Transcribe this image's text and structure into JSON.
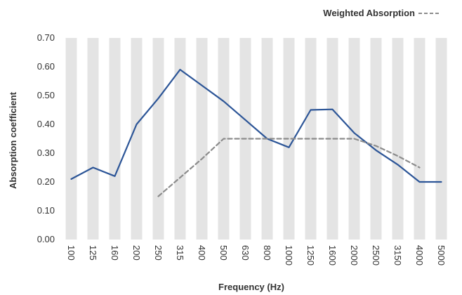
{
  "chart_data": {
    "type": "line",
    "xlabel": "Frequency (Hz)",
    "ylabel": "Absorption coefficient",
    "categories": [
      "100",
      "125",
      "160",
      "200",
      "250",
      "315",
      "400",
      "500",
      "630",
      "800",
      "1000",
      "1250",
      "1600",
      "2000",
      "2500",
      "3150",
      "4000",
      "5000"
    ],
    "ylim": [
      0,
      0.7
    ],
    "yticks": [
      "0.00",
      "0.10",
      "0.20",
      "0.30",
      "0.40",
      "0.50",
      "0.60",
      "0.70"
    ],
    "grid": "alternating vertical bands",
    "legend_position": "top-right",
    "series": [
      {
        "values": [
          0.21,
          0.25,
          0.22,
          0.4,
          0.49,
          0.59,
          0.535,
          0.48,
          0.415,
          0.35,
          0.32,
          0.45,
          0.452,
          0.37,
          0.31,
          0.26,
          0.2,
          0.2
        ],
        "color": "#2c5597",
        "style": "solid"
      },
      {
        "name": "Weighted Absorption",
        "values": [
          null,
          null,
          null,
          null,
          0.15,
          0.215,
          0.28,
          0.35,
          0.35,
          0.35,
          0.35,
          0.35,
          0.35,
          0.35,
          0.325,
          0.29,
          0.25,
          null
        ],
        "color": "#8c8c8c",
        "style": "dashed"
      }
    ]
  }
}
